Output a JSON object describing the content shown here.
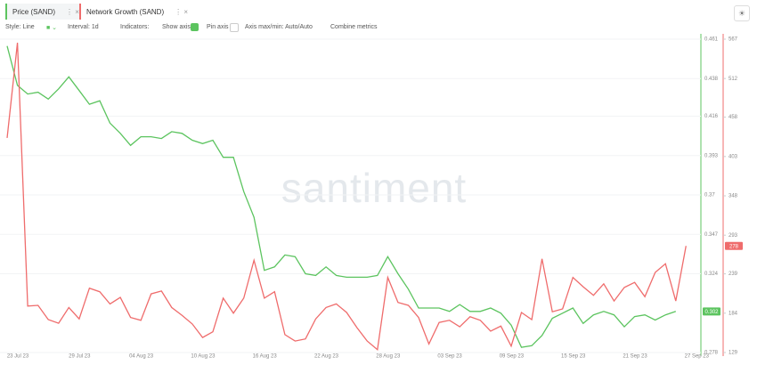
{
  "tabs": [
    "Price (SAND)",
    "Network Growth (SAND)"
  ],
  "toolbar": {
    "style": "Style: Line",
    "interval": "Interval: 1d",
    "indicators": "Indicators:",
    "show_axis": "Show axis",
    "pin_axis": "Pin axis",
    "axis_range": "Axis max/min: Auto/Auto",
    "combine": "Combine metrics"
  },
  "watermark": "santiment",
  "chart_data": {
    "type": "line",
    "categories": [
      "23 Jul 23",
      null,
      null,
      null,
      null,
      null,
      "29 Jul 23",
      null,
      null,
      null,
      null,
      null,
      "04 Aug 23",
      null,
      null,
      null,
      null,
      null,
      "10 Aug 23",
      null,
      null,
      null,
      null,
      null,
      "16 Aug 23",
      null,
      null,
      null,
      null,
      null,
      "22 Aug 23",
      null,
      null,
      null,
      null,
      null,
      "28 Aug 23",
      null,
      null,
      null,
      null,
      null,
      "03 Sep 23",
      null,
      null,
      null,
      null,
      null,
      "09 Sep 23",
      null,
      null,
      null,
      null,
      null,
      "15 Sep 23",
      null,
      null,
      null,
      null,
      null,
      "21 Sep 23",
      null,
      null,
      null,
      null,
      null,
      "27 Sep 23"
    ],
    "series": [
      {
        "name": "Price (SAND)",
        "color": "#5cc45f",
        "axis": "y",
        "values": [
          0.457,
          0.434,
          0.429,
          0.43,
          0.426,
          0.432,
          0.439,
          0.431,
          0.423,
          0.425,
          0.412,
          0.406,
          0.399,
          0.404,
          0.404,
          0.403,
          0.407,
          0.406,
          0.402,
          0.4,
          0.402,
          0.392,
          0.392,
          0.372,
          0.357,
          0.326,
          0.328,
          0.335,
          0.334,
          0.324,
          0.323,
          0.328,
          0.323,
          0.322,
          0.322,
          0.322,
          0.323,
          0.334,
          0.324,
          0.315,
          0.304,
          0.304,
          0.304,
          0.302,
          0.306,
          0.302,
          0.302,
          0.304,
          0.301,
          0.294,
          0.281,
          0.282,
          0.288,
          0.298,
          0.301,
          0.304,
          0.295,
          0.3,
          0.302,
          0.3,
          0.293,
          0.299,
          0.3,
          0.297,
          0.3,
          0.302,
          null
        ]
      },
      {
        "name": "Network Growth (SAND)",
        "color": "#ef6c6c",
        "axis": "y2",
        "values": [
          429,
          562,
          194,
          195,
          175,
          170,
          192,
          176,
          219,
          214,
          197,
          206,
          178,
          174,
          211,
          215,
          192,
          181,
          169,
          150,
          158,
          205,
          184,
          205,
          258,
          205,
          214,
          154,
          145,
          148,
          176,
          192,
          197,
          185,
          164,
          145,
          133,
          234,
          199,
          195,
          178,
          141,
          171,
          174,
          165,
          179,
          174,
          159,
          166,
          138,
          185,
          175,
          260,
          186,
          190,
          234,
          221,
          209,
          225,
          201,
          220,
          227,
          207,
          241,
          253,
          201,
          278
        ]
      }
    ],
    "ylim": [
      0.278,
      0.461
    ],
    "yticks": [
      0.461,
      0.438,
      0.416,
      0.393,
      0.37,
      0.347,
      0.324,
      0.278
    ],
    "y2lim": [
      129,
      567
    ],
    "y2ticks": [
      567,
      512,
      458,
      403,
      348,
      293,
      239,
      184,
      129
    ],
    "grid": true
  }
}
